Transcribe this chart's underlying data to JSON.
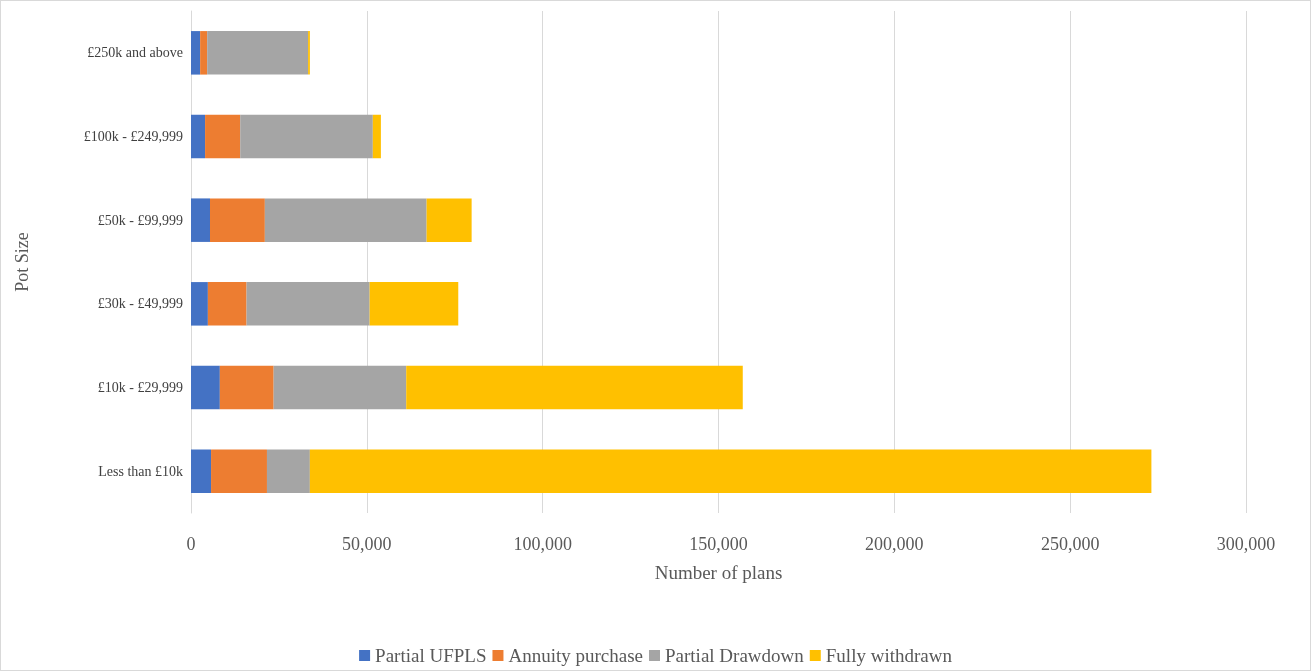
{
  "chart_data": {
    "type": "bar",
    "orientation": "horizontal",
    "stacked": true,
    "xlabel": "Number of plans",
    "ylabel": "Pot Size",
    "categories": [
      "£250k and above",
      "£100k - £249,999",
      "£50k - £99,999",
      "£30k - £49,999",
      "£10k - £29,999",
      "Less than £10k"
    ],
    "series": [
      {
        "name": "Partial UFPLS",
        "color": "#4472c4",
        "values": [
          2600,
          4000,
          5400,
          4800,
          8200,
          5700
        ]
      },
      {
        "name": "Annuity purchase",
        "color": "#ed7d31",
        "values": [
          2000,
          10000,
          15600,
          11000,
          15300,
          15900
        ]
      },
      {
        "name": "Partial Drawdown",
        "color": "#a5a5a5",
        "values": [
          28700,
          37700,
          46000,
          35000,
          37700,
          12200
        ]
      },
      {
        "name": "Fully withdrawn",
        "color": "#ffc000",
        "values": [
          500,
          2300,
          12800,
          25200,
          95700,
          239300
        ]
      }
    ],
    "xlim": [
      0,
      300000
    ],
    "xticks": [
      0,
      {
        "value": 50000,
        "label": "50,000"
      },
      {
        "value": 100000,
        "label": "100,000"
      },
      {
        "value": 150000,
        "label": "150,000"
      },
      {
        "value": 200000,
        "label": "200,000"
      },
      {
        "value": 250000,
        "label": "250,000"
      },
      {
        "value": 300000,
        "label": "300,000"
      }
    ],
    "grid": "x",
    "legend": "bottom"
  }
}
